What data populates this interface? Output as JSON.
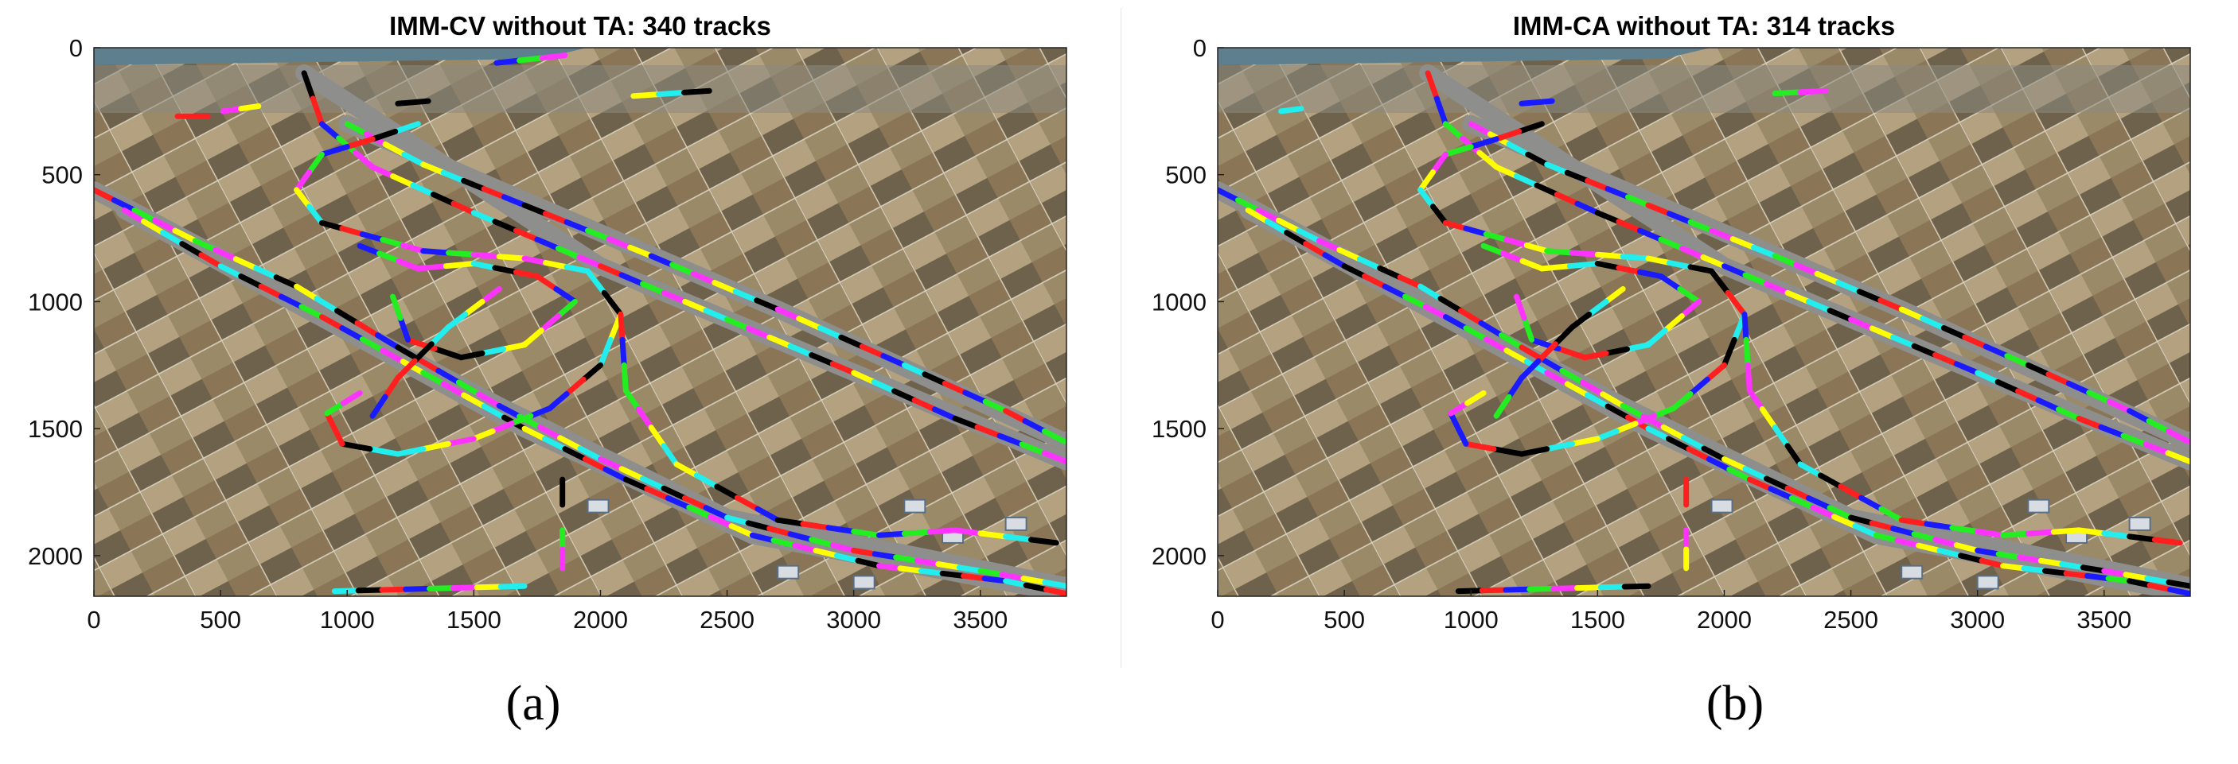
{
  "captions": [
    "(a)",
    "(b)"
  ],
  "colors": {
    "track_palette": [
      "#ff1f1f",
      "#1a1aff",
      "#22ee22",
      "#ff33ff",
      "#ffff00",
      "#22eeee",
      "#000000"
    ],
    "background_image": "aerial photo of highway interchange with farmland"
  },
  "chart_data": [
    {
      "type": "scatter",
      "title": "IMM-CV without TA: 340 tracks",
      "xlabel": "",
      "ylabel": "",
      "xlim": [
        0,
        3840
      ],
      "ylim": [
        2160,
        0
      ],
      "y_axis_direction": "reversed",
      "xticks": [
        0,
        500,
        1000,
        1500,
        2000,
        2500,
        3000,
        3500
      ],
      "yticks": [
        0,
        500,
        1000,
        1500,
        2000
      ],
      "grid": false,
      "legend": "none",
      "track_count": 340,
      "series": [
        {
          "values": [
            [
              0,
              560
            ],
            [
              400,
              760
            ],
            [
              800,
              940
            ],
            [
              1200,
              1180
            ],
            [
              1600,
              1410
            ],
            [
              2000,
              1620
            ],
            [
              2500,
              1850
            ],
            [
              3000,
              1980
            ],
            [
              3500,
              2060
            ],
            [
              3840,
              2120
            ]
          ]
        },
        {
          "values": [
            [
              120,
              640
            ],
            [
              500,
              860
            ],
            [
              900,
              1060
            ],
            [
              1300,
              1280
            ],
            [
              1700,
              1500
            ],
            [
              2100,
              1700
            ],
            [
              2600,
              1920
            ],
            [
              3100,
              2040
            ],
            [
              3600,
              2100
            ],
            [
              3840,
              2150
            ]
          ]
        },
        {
          "values": [
            [
              830,
              100
            ],
            [
              900,
              300
            ],
            [
              1100,
              470
            ],
            [
              1500,
              650
            ],
            [
              2000,
              860
            ],
            [
              2500,
              1070
            ],
            [
              3000,
              1280
            ],
            [
              3400,
              1460
            ],
            [
              3840,
              1630
            ]
          ]
        },
        {
          "values": [
            [
              1000,
              300
            ],
            [
              1300,
              460
            ],
            [
              1700,
              620
            ],
            [
              2200,
              820
            ],
            [
              2700,
              1030
            ],
            [
              3200,
              1250
            ],
            [
              3600,
              1430
            ],
            [
              3830,
              1550
            ]
          ]
        },
        {
          "values": [
            [
              1280,
              300
            ],
            [
              1100,
              360
            ],
            [
              900,
              420
            ],
            [
              800,
              560
            ],
            [
              900,
              690
            ],
            [
              1300,
              800
            ],
            [
              1700,
              830
            ],
            [
              1950,
              880
            ],
            [
              2080,
              1050
            ]
          ]
        },
        {
          "values": [
            [
              1050,
              780
            ],
            [
              1280,
              870
            ],
            [
              1500,
              850
            ],
            [
              1750,
              900
            ],
            [
              1900,
              1000
            ],
            [
              1700,
              1170
            ],
            [
              1450,
              1220
            ],
            [
              1240,
              1150
            ],
            [
              1180,
              980
            ]
          ]
        },
        {
          "values": [
            [
              2080,
              1050
            ],
            [
              2000,
              1250
            ],
            [
              1800,
              1420
            ],
            [
              1500,
              1540
            ],
            [
              1200,
              1600
            ],
            [
              980,
              1560
            ],
            [
              920,
              1440
            ],
            [
              1050,
              1360
            ]
          ]
        },
        {
          "values": [
            [
              2080,
              1050
            ],
            [
              2100,
              1350
            ],
            [
              2300,
              1640
            ],
            [
              2700,
              1860
            ],
            [
              3100,
              1920
            ],
            [
              3400,
              1900
            ],
            [
              3800,
              1950
            ]
          ]
        },
        {
          "values": [
            [
              1600,
              950
            ],
            [
              1400,
              1100
            ],
            [
              1200,
              1300
            ],
            [
              1100,
              1450
            ]
          ]
        },
        {
          "values": [
            [
              1850,
              1700
            ],
            [
              1850,
              1800
            ]
          ]
        },
        {
          "values": [
            [
              1850,
              1900
            ],
            [
              1850,
              2050
            ]
          ]
        },
        {
          "values": [
            [
              950,
              2140
            ],
            [
              1700,
              2120
            ]
          ]
        },
        {
          "values": [
            [
              1590,
              60
            ],
            [
              1860,
              30
            ]
          ]
        },
        {
          "values": [
            [
              2130,
              190
            ],
            [
              2430,
              170
            ]
          ]
        },
        {
          "values": [
            [
              330,
              270
            ],
            [
              450,
              270
            ]
          ]
        },
        {
          "values": [
            [
              510,
              250
            ],
            [
              650,
              230
            ]
          ]
        },
        {
          "values": [
            [
              1200,
              220
            ],
            [
              1320,
              210
            ]
          ]
        }
      ]
    },
    {
      "type": "scatter",
      "title": "IMM-CA without TA: 314 tracks",
      "xlabel": "",
      "ylabel": "",
      "xlim": [
        0,
        3840
      ],
      "ylim": [
        2160,
        0
      ],
      "y_axis_direction": "reversed",
      "xticks": [
        0,
        500,
        1000,
        1500,
        2000,
        2500,
        3000,
        3500
      ],
      "yticks": [
        0,
        500,
        1000,
        1500,
        2000
      ],
      "grid": false,
      "legend": "none",
      "track_count": 314,
      "series": [
        {
          "values": [
            [
              0,
              560
            ],
            [
              400,
              760
            ],
            [
              800,
              940
            ],
            [
              1200,
              1180
            ],
            [
              1600,
              1410
            ],
            [
              2000,
              1620
            ],
            [
              2500,
              1850
            ],
            [
              3000,
              1980
            ],
            [
              3500,
              2060
            ],
            [
              3840,
              2120
            ]
          ]
        },
        {
          "values": [
            [
              120,
              640
            ],
            [
              500,
              860
            ],
            [
              900,
              1060
            ],
            [
              1300,
              1280
            ],
            [
              1700,
              1500
            ],
            [
              2100,
              1700
            ],
            [
              2600,
              1920
            ],
            [
              3100,
              2040
            ],
            [
              3600,
              2100
            ],
            [
              3840,
              2150
            ]
          ]
        },
        {
          "values": [
            [
              830,
              100
            ],
            [
              900,
              300
            ],
            [
              1100,
              470
            ],
            [
              1500,
              650
            ],
            [
              2000,
              860
            ],
            [
              2500,
              1070
            ],
            [
              3000,
              1280
            ],
            [
              3400,
              1460
            ],
            [
              3840,
              1630
            ]
          ]
        },
        {
          "values": [
            [
              1000,
              300
            ],
            [
              1300,
              460
            ],
            [
              1700,
              620
            ],
            [
              2200,
              820
            ],
            [
              2700,
              1030
            ],
            [
              3200,
              1250
            ],
            [
              3600,
              1430
            ],
            [
              3830,
              1550
            ]
          ]
        },
        {
          "values": [
            [
              1280,
              300
            ],
            [
              1100,
              360
            ],
            [
              900,
              420
            ],
            [
              800,
              560
            ],
            [
              900,
              690
            ],
            [
              1300,
              800
            ],
            [
              1700,
              830
            ],
            [
              1950,
              880
            ],
            [
              2080,
              1050
            ]
          ]
        },
        {
          "values": [
            [
              1050,
              780
            ],
            [
              1280,
              870
            ],
            [
              1500,
              850
            ],
            [
              1750,
              900
            ],
            [
              1900,
              1000
            ],
            [
              1700,
              1170
            ],
            [
              1450,
              1220
            ],
            [
              1240,
              1150
            ],
            [
              1180,
              980
            ]
          ]
        },
        {
          "values": [
            [
              2080,
              1050
            ],
            [
              2000,
              1250
            ],
            [
              1800,
              1420
            ],
            [
              1500,
              1540
            ],
            [
              1200,
              1600
            ],
            [
              980,
              1560
            ],
            [
              920,
              1440
            ],
            [
              1050,
              1360
            ]
          ]
        },
        {
          "values": [
            [
              2080,
              1050
            ],
            [
              2100,
              1350
            ],
            [
              2300,
              1640
            ],
            [
              2700,
              1860
            ],
            [
              3100,
              1920
            ],
            [
              3400,
              1900
            ],
            [
              3800,
              1950
            ]
          ]
        },
        {
          "values": [
            [
              1600,
              950
            ],
            [
              1400,
              1100
            ],
            [
              1200,
              1300
            ],
            [
              1100,
              1450
            ]
          ]
        },
        {
          "values": [
            [
              1850,
              1700
            ],
            [
              1850,
              1800
            ]
          ]
        },
        {
          "values": [
            [
              1850,
              1900
            ],
            [
              1850,
              2050
            ]
          ]
        },
        {
          "values": [
            [
              950,
              2140
            ],
            [
              1700,
              2120
            ]
          ]
        },
        {
          "values": [
            [
              2200,
              180
            ],
            [
              2400,
              170
            ]
          ]
        },
        {
          "values": [
            [
              250,
              250
            ],
            [
              330,
              240
            ]
          ]
        },
        {
          "values": [
            [
              1200,
              220
            ],
            [
              1320,
              210
            ]
          ]
        }
      ]
    }
  ]
}
